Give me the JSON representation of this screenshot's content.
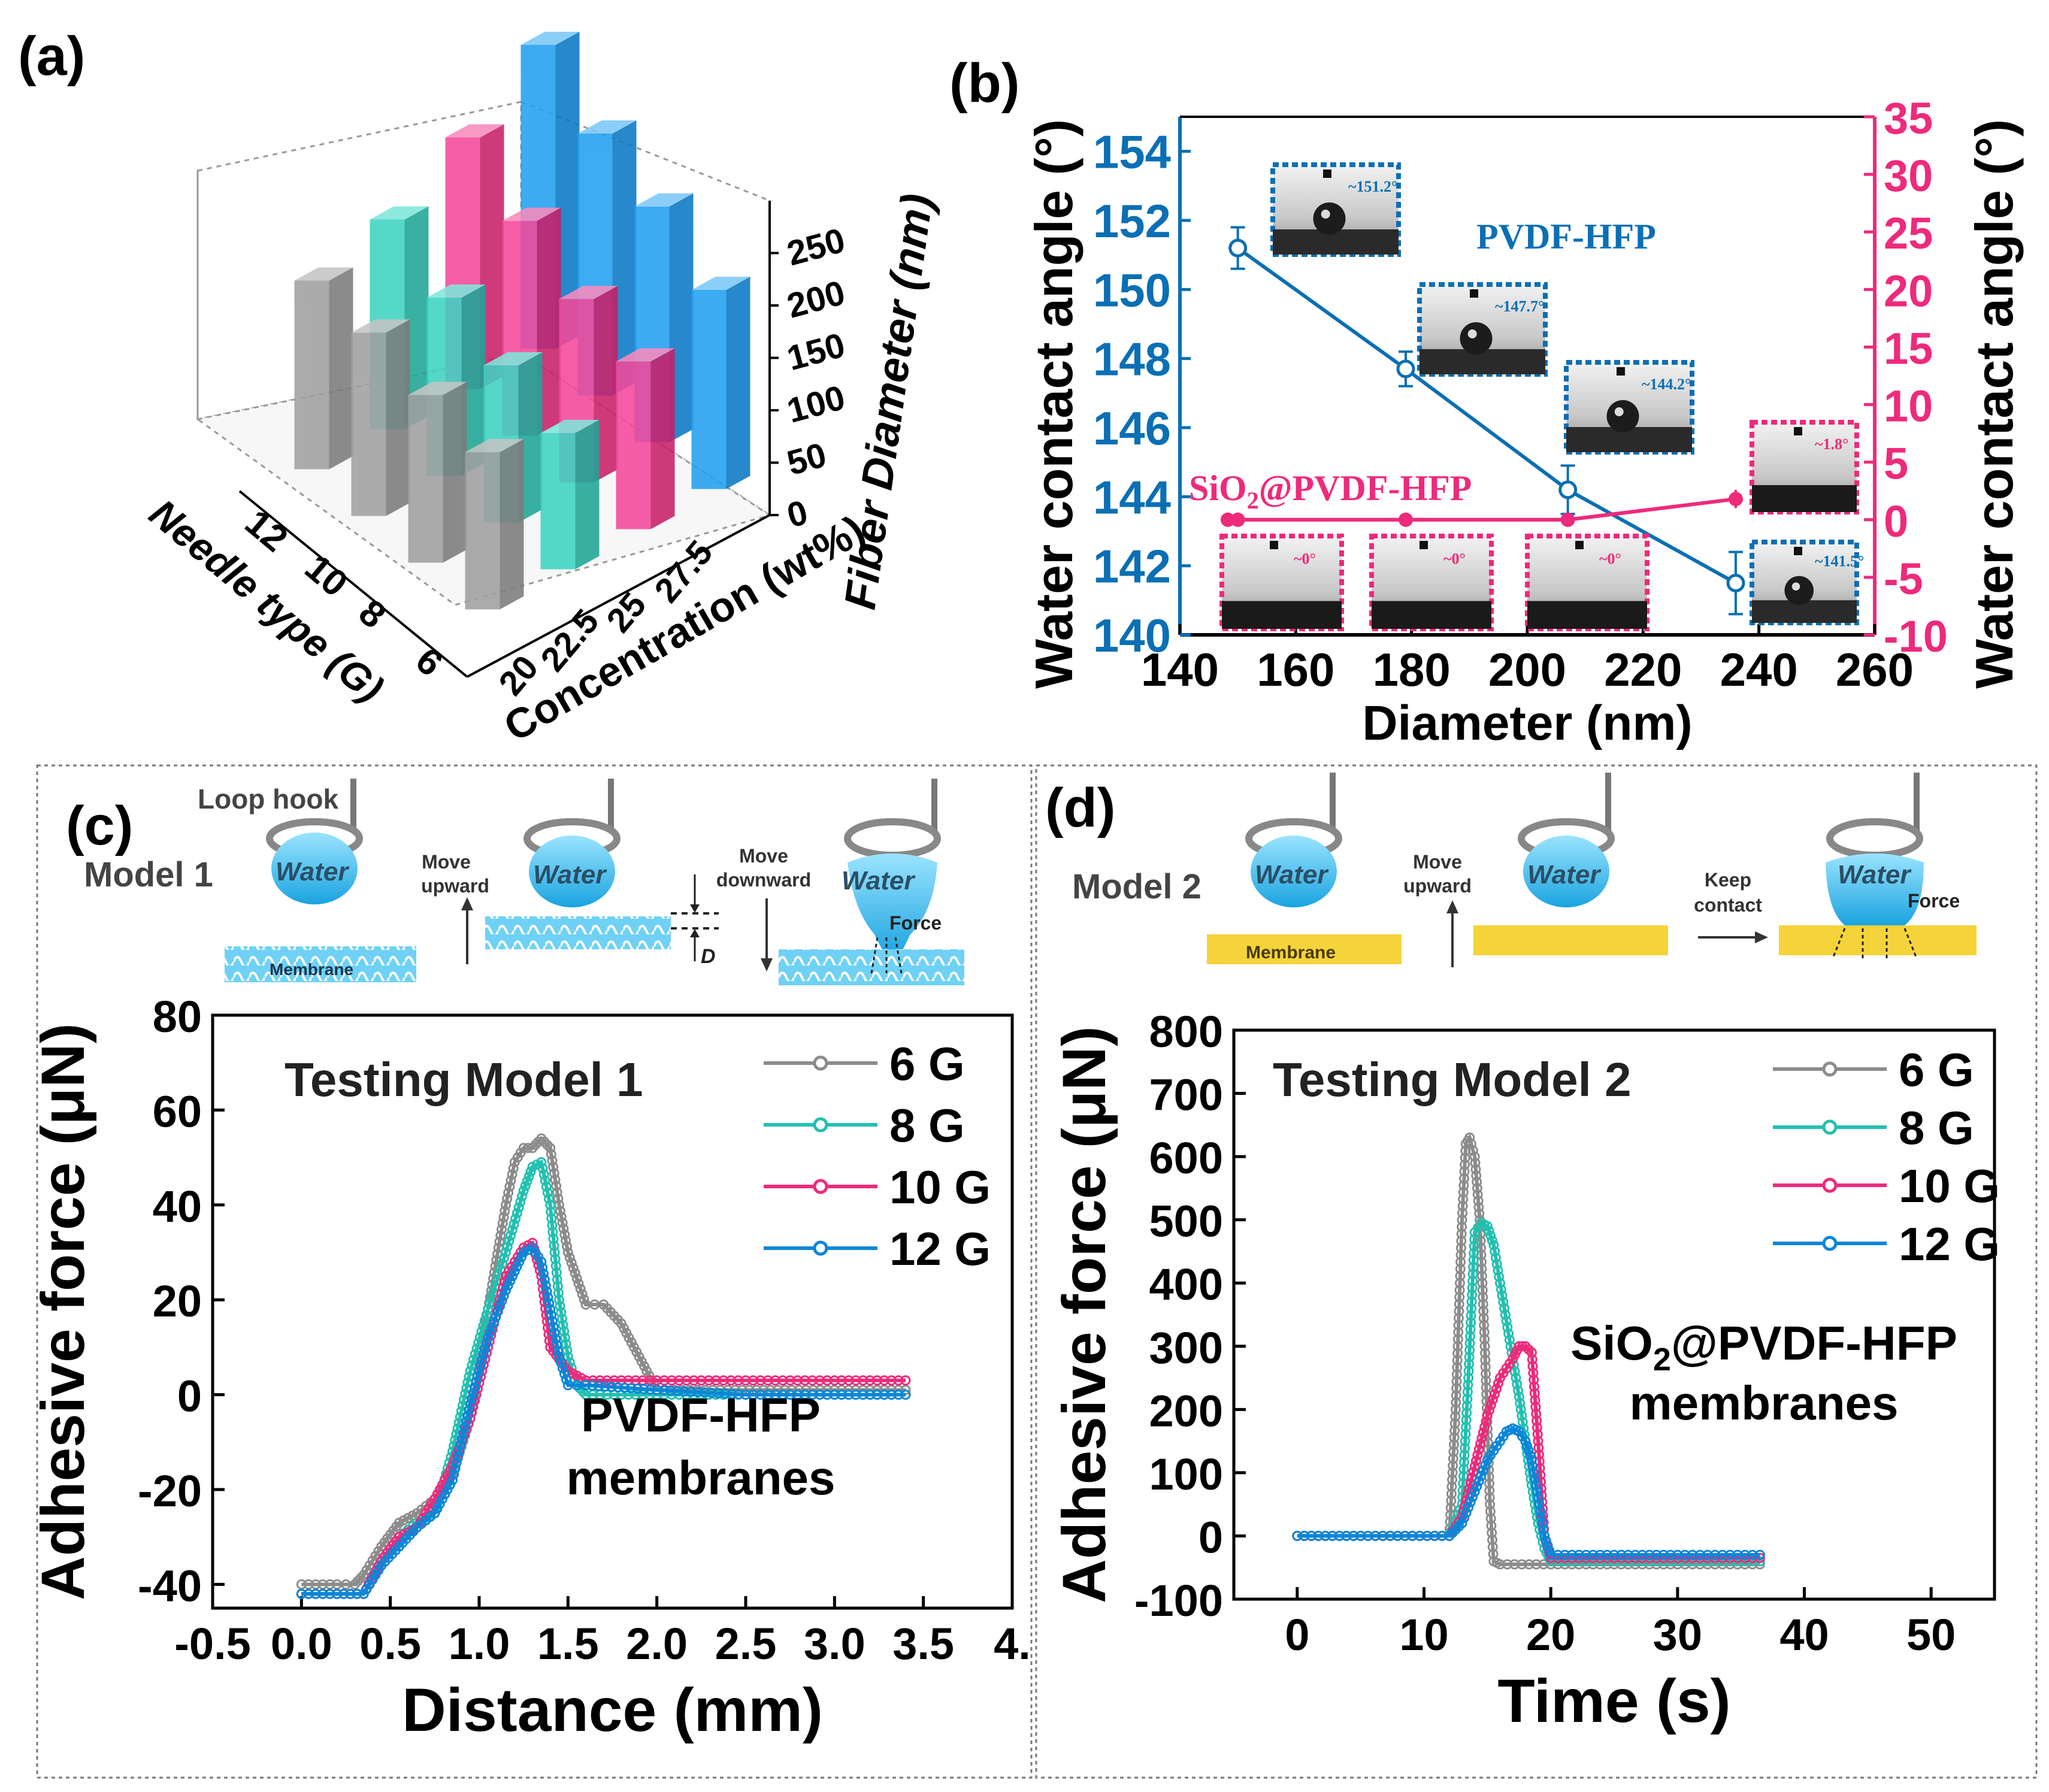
{
  "colors": {
    "gray": "#8c8c8c",
    "teal": "#23c0b0",
    "pink": "#ee2a7b",
    "blue": "#0a86d8",
    "axis_blue": "#0a6fb4",
    "axis_pink": "#ee2a7b",
    "water": "#3ab6e8",
    "membrane_yellow": "#f5d33a"
  },
  "panels": {
    "a": {
      "letter": "(a)"
    },
    "b": {
      "letter": "(b)"
    },
    "c": {
      "letter": "(c)"
    },
    "d": {
      "letter": "(d)"
    }
  },
  "schematic_c": {
    "loop_hook": "Loop hook",
    "model": "Model 1",
    "water": "Water",
    "membrane": "Membrane",
    "move_up": [
      "Move",
      "upward"
    ],
    "move_down": [
      "Move",
      "downward"
    ],
    "force": "Force",
    "d": "D"
  },
  "schematic_d": {
    "model": "Model 2",
    "water": "Water",
    "membrane": "Membrane",
    "move_up": [
      "Move",
      "upward"
    ],
    "keep": [
      "Keep",
      "contact"
    ],
    "force": "Force"
  },
  "chart_data": [
    {
      "panel": "a",
      "type": "bar",
      "title": "",
      "zlabel": "Fiber Diameter (nm)",
      "xlabel": "Concentration (wt%)",
      "ylabel": "Needle type (G)",
      "concentration_ticks": [
        "20",
        "22.5",
        "25",
        "27.5"
      ],
      "needle_ticks": [
        "6",
        "8",
        "10",
        "12"
      ],
      "z_ticks": [
        "0",
        "50",
        "100",
        "150",
        "200",
        "250"
      ],
      "zlim": [
        0,
        280
      ],
      "series": [
        {
          "concentration": "20",
          "color": "gray",
          "needle": [
            "6",
            "8",
            "10",
            "12"
          ],
          "values": [
            150,
            160,
            175,
            180
          ]
        },
        {
          "concentration": "22.5",
          "color": "teal",
          "needle": [
            "6",
            "8",
            "10",
            "12"
          ],
          "values": [
            130,
            150,
            170,
            200
          ]
        },
        {
          "concentration": "25",
          "color": "pink",
          "needle": [
            "6",
            "8",
            "10",
            "12"
          ],
          "values": [
            160,
            175,
            205,
            240
          ]
        },
        {
          "concentration": "27.5",
          "color": "blue",
          "needle": [
            "6",
            "8",
            "10",
            "12"
          ],
          "values": [
            190,
            225,
            250,
            290
          ]
        }
      ]
    },
    {
      "panel": "b",
      "type": "line",
      "xlabel": "Diameter (nm)",
      "ylabel": "Water contact angle (°)",
      "y2label": "Water contact angle (°)",
      "xlim": [
        140,
        260
      ],
      "ylim": [
        140,
        155
      ],
      "y2lim": [
        -10,
        35
      ],
      "x_ticks": [
        "140",
        "160",
        "180",
        "200",
        "220",
        "240",
        "260"
      ],
      "y_ticks": [
        "140",
        "142",
        "144",
        "146",
        "148",
        "150",
        "152",
        "154"
      ],
      "y2_ticks": [
        "-10",
        "-5",
        "0",
        "5",
        "10",
        "15",
        "20",
        "25",
        "30",
        "35"
      ],
      "series": [
        {
          "name": "PVDF-HFP",
          "axis": "left",
          "x": [
            150,
            179,
            207,
            236
          ],
          "y": [
            151.2,
            147.7,
            144.2,
            141.5
          ],
          "err": [
            0.6,
            0.5,
            0.7,
            0.9
          ]
        },
        {
          "name_main": "SiO",
          "name_sub": "2",
          "name_rest": "@PVDF-HFP",
          "axis": "right",
          "x": [
            150,
            179,
            207,
            236
          ],
          "y": [
            0,
            0,
            0,
            1.8
          ],
          "err": [
            0,
            0,
            0,
            0.8
          ]
        }
      ],
      "insets_blue": [
        "~151.2°",
        "~147.7°",
        "~144.2°",
        "~141.5°"
      ],
      "insets_pink": [
        "~0°",
        "~0°",
        "~0°",
        "~1.8°"
      ]
    },
    {
      "panel": "c",
      "type": "line",
      "title": "Testing Model 1",
      "annotation": [
        "PVDF-HFP",
        "membranes"
      ],
      "xlabel": "Distance (mm)",
      "ylabel": "Adhesive force (μN)",
      "xlim": [
        -0.5,
        4.0
      ],
      "ylim": [
        -45,
        80
      ],
      "x_ticks": [
        "-0.5",
        "0.0",
        "0.5",
        "1.0",
        "1.5",
        "2.0",
        "2.5",
        "3.0",
        "3.5",
        "4."
      ],
      "y_ticks": [
        "-40",
        "-20",
        "0",
        "20",
        "40",
        "60",
        "80"
      ],
      "series": [
        {
          "name": "6 G",
          "color": "gray",
          "x": [
            0,
            0.2,
            0.3,
            0.35,
            0.45,
            0.55,
            0.65,
            0.75,
            0.85,
            0.95,
            1.05,
            1.15,
            1.2,
            1.25,
            1.3,
            1.35,
            1.4,
            1.45,
            1.5,
            1.6,
            1.7,
            1.8,
            1.9,
            2.0,
            2.1,
            2.4,
            3.0,
            3.4
          ],
          "y": [
            -40,
            -40,
            -40,
            -38,
            -32,
            -27,
            -25,
            -22,
            -17,
            -5,
            18,
            40,
            49,
            52,
            52,
            54,
            52,
            40,
            30,
            19,
            19,
            15,
            8,
            1,
            1,
            1,
            1,
            1
          ]
        },
        {
          "name": "8 G",
          "color": "teal",
          "x": [
            0,
            0.2,
            0.35,
            0.45,
            0.55,
            0.65,
            0.75,
            0.85,
            0.95,
            1.05,
            1.15,
            1.25,
            1.3,
            1.35,
            1.4,
            1.45,
            1.5,
            1.55,
            1.6,
            2.0,
            2.5,
            3.0,
            3.4
          ],
          "y": [
            -42,
            -42,
            -42,
            -35,
            -30,
            -27,
            -25,
            -12,
            5,
            18,
            30,
            43,
            48,
            49,
            40,
            20,
            8,
            2,
            0,
            0,
            0,
            0,
            0
          ]
        },
        {
          "name": "10 G",
          "color": "pink",
          "x": [
            0,
            0.2,
            0.35,
            0.45,
            0.55,
            0.65,
            0.75,
            0.85,
            0.95,
            1.05,
            1.15,
            1.25,
            1.3,
            1.35,
            1.4,
            1.5,
            1.6,
            1.8,
            2.0,
            2.5,
            3.0,
            3.4
          ],
          "y": [
            -42,
            -42,
            -42,
            -35,
            -30,
            -28,
            -22,
            -15,
            -5,
            10,
            25,
            31,
            32,
            25,
            10,
            5,
            3,
            3,
            3,
            3,
            3,
            3
          ]
        },
        {
          "name": "12 G",
          "color": "blue",
          "x": [
            0,
            0.2,
            0.35,
            0.45,
            0.55,
            0.65,
            0.75,
            0.85,
            0.95,
            1.05,
            1.15,
            1.25,
            1.3,
            1.35,
            1.4,
            1.45,
            1.5,
            1.6,
            2.0,
            2.5,
            3.0,
            3.4
          ],
          "y": [
            -42,
            -42,
            -42,
            -36,
            -32,
            -28,
            -25,
            -18,
            -2,
            12,
            22,
            30,
            31,
            28,
            18,
            8,
            2,
            2,
            1,
            0,
            0,
            0
          ]
        }
      ]
    },
    {
      "panel": "d",
      "type": "line",
      "title": "Testing Model 2",
      "annotation_main": "SiO",
      "annotation_sub": "2",
      "annotation_rest": "@PVDF-HFP",
      "annotation_line2": "membranes",
      "xlabel": "Time (s)",
      "ylabel": "Adhesive force (μN)",
      "xlim": [
        -5,
        55
      ],
      "ylim": [
        -100,
        800
      ],
      "x_ticks": [
        "0",
        "10",
        "20",
        "30",
        "40",
        "50"
      ],
      "y_ticks": [
        "-100",
        "0",
        "100",
        "200",
        "300",
        "400",
        "500",
        "600",
        "700",
        "800"
      ],
      "series": [
        {
          "name": "6 G",
          "color": "gray",
          "x": [
            0,
            5,
            12,
            12.5,
            13,
            13.3,
            13.6,
            14,
            14.4,
            14.8,
            15.2,
            15.5,
            16,
            20,
            30,
            36.5
          ],
          "y": [
            0,
            0,
            0,
            200,
            500,
            620,
            630,
            600,
            500,
            300,
            50,
            -40,
            -45,
            -45,
            -45,
            -45
          ]
        },
        {
          "name": "8 G",
          "color": "teal",
          "x": [
            0,
            5,
            12,
            13,
            13.5,
            14,
            14.5,
            15,
            15.5,
            16,
            16.5,
            17,
            17.5,
            18,
            18.5,
            19,
            19.5,
            20,
            25,
            30,
            36.5
          ],
          "y": [
            0,
            0,
            0,
            50,
            250,
            480,
            495,
            490,
            460,
            400,
            340,
            280,
            220,
            150,
            80,
            20,
            -20,
            -40,
            -40,
            -40,
            -40
          ]
        },
        {
          "name": "10 G",
          "color": "pink",
          "x": [
            0,
            5,
            12,
            13,
            14,
            15,
            16,
            17,
            17.5,
            18,
            18.5,
            19,
            19.5,
            20,
            25,
            30,
            36.5
          ],
          "y": [
            0,
            0,
            0,
            30,
            110,
            190,
            250,
            280,
            300,
            300,
            290,
            150,
            0,
            -35,
            -35,
            -35,
            -35
          ]
        },
        {
          "name": "12 G",
          "color": "blue",
          "x": [
            0,
            5,
            12,
            13,
            14,
            15,
            16,
            16.5,
            17,
            17.5,
            18,
            18.5,
            19,
            19.5,
            20,
            25,
            30,
            36.5
          ],
          "y": [
            0,
            0,
            0,
            20,
            70,
            120,
            150,
            165,
            170,
            165,
            150,
            120,
            60,
            0,
            -30,
            -30,
            -30,
            -30
          ]
        }
      ]
    }
  ]
}
